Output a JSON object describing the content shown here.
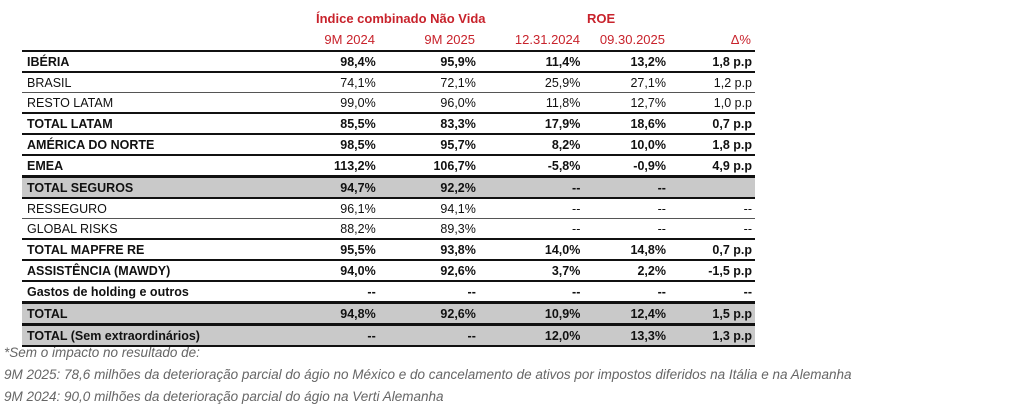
{
  "header": {
    "group1": "Índice combinado Não Vida",
    "group2": "ROE",
    "columns": [
      "9M 2024",
      "9M 2025",
      "12.31.2024",
      "09.30.2025",
      "Δ%"
    ]
  },
  "rows": [
    {
      "label": "IBÉRIA",
      "style": "bold",
      "values": [
        "98,4%",
        "95,9%",
        "11,4%",
        "13,2%",
        "1,8 p.p"
      ]
    },
    {
      "label": "BRASIL",
      "style": "normal",
      "values": [
        "74,1%",
        "72,1%",
        "25,9%",
        "27,1%",
        "1,2 p.p"
      ]
    },
    {
      "label": "RESTO LATAM",
      "style": "normal",
      "values": [
        "99,0%",
        "96,0%",
        "11,8%",
        "12,7%",
        "1,0 p.p"
      ]
    },
    {
      "label": "TOTAL LATAM",
      "style": "bold",
      "values": [
        "85,5%",
        "83,3%",
        "17,9%",
        "18,6%",
        "0,7 p.p"
      ]
    },
    {
      "label": "AMÉRICA DO NORTE",
      "style": "bold",
      "values": [
        "98,5%",
        "95,7%",
        "8,2%",
        "10,0%",
        "1,8 p.p"
      ]
    },
    {
      "label": "EMEA",
      "style": "bold",
      "values": [
        "113,2%",
        "106,7%",
        "-5,8%",
        "-0,9%",
        "4,9 p.p"
      ]
    },
    {
      "label": "TOTAL SEGUROS",
      "style": "shaded",
      "values": [
        "94,7%",
        "92,2%",
        "--",
        "--",
        ""
      ]
    },
    {
      "label": "RESSEGURO",
      "style": "normal",
      "values": [
        "96,1%",
        "94,1%",
        "--",
        "--",
        "--"
      ]
    },
    {
      "label": "GLOBAL RISKS",
      "style": "normal",
      "values": [
        "88,2%",
        "89,3%",
        "--",
        "--",
        "--"
      ]
    },
    {
      "label": "TOTAL MAPFRE RE",
      "style": "bold",
      "values": [
        "95,5%",
        "93,8%",
        "14,0%",
        "14,8%",
        "0,7 p.p"
      ]
    },
    {
      "label": "ASSISTÊNCIA (MAWDY)",
      "style": "bold",
      "values": [
        "94,0%",
        "92,6%",
        "3,7%",
        "2,2%",
        "-1,5 p.p"
      ]
    },
    {
      "label": "Gastos de holding e outros",
      "style": "bold",
      "values": [
        "--",
        "--",
        "--",
        "--",
        "--"
      ]
    },
    {
      "label": "TOTAL",
      "style": "shaded",
      "values": [
        "94,8%",
        "92,6%",
        "10,9%",
        "12,4%",
        "1,5 p.p"
      ]
    },
    {
      "label": "TOTAL (Sem extraordinários)",
      "style": "shaded",
      "values": [
        "--",
        "--",
        "12,0%",
        "13,3%",
        "1,3 p.p"
      ]
    }
  ],
  "footnotes": [
    "*Sem o impacto no resultado de:",
    "9M 2025: 78,6 milhões da deterioração parcial do ágio no México e do cancelamento de ativos por impostos diferidos na Itália e na Alemanha",
    "9M 2024: 90,0 milhões da deterioração parcial do ágio na Verti Alemanha"
  ]
}
